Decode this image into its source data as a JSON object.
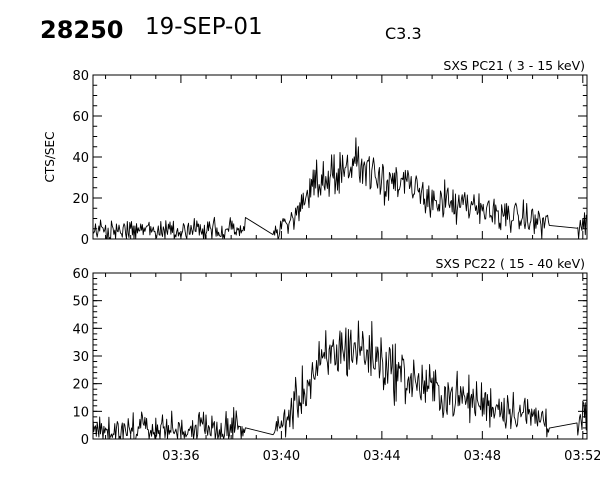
{
  "header": {
    "event_id": "28250",
    "date": "19-SEP-01",
    "flare_class": "C3.3"
  },
  "chart_data": [
    {
      "type": "line",
      "title": "SXS PC21  (  3 - 15 keV)",
      "ylabel": "CTS/SEC",
      "xlabel": "",
      "xlim": [
        "03:32:30",
        "03:52:10"
      ],
      "ylim": [
        0,
        80
      ],
      "yticks": [
        0,
        20,
        40,
        60,
        80
      ],
      "xticks": [
        "03:36",
        "03:40",
        "03:44",
        "03:48",
        "03:52"
      ],
      "grid": false,
      "series": [
        {
          "data_gaps": [
            [
              "03:38:35",
              "03:39:40"
            ],
            [
              "03:50:40",
              "03:51:45"
            ]
          ],
          "x": [
            "03:32:30",
            "03:33:00",
            "03:33:30",
            "03:34:00",
            "03:34:30",
            "03:35:00",
            "03:35:30",
            "03:36:00",
            "03:36:30",
            "03:37:00",
            "03:37:30",
            "03:38:00",
            "03:38:30",
            "03:39:40",
            "03:40:00",
            "03:40:20",
            "03:40:40",
            "03:41:00",
            "03:41:20",
            "03:41:40",
            "03:42:00",
            "03:42:20",
            "03:42:40",
            "03:43:00",
            "03:43:20",
            "03:43:40",
            "03:44:00",
            "03:44:30",
            "03:45:00",
            "03:45:30",
            "03:46:00",
            "03:46:30",
            "03:47:00",
            "03:47:30",
            "03:48:00",
            "03:48:30",
            "03:49:00",
            "03:49:30",
            "03:50:00",
            "03:50:40",
            "03:51:45",
            "03:52:10"
          ],
          "values": [
            4,
            4,
            3,
            5,
            4,
            4,
            5,
            4,
            4,
            4,
            5,
            6,
            4,
            3,
            5,
            8,
            14,
            19,
            25,
            29,
            32,
            34,
            36,
            37,
            36,
            34,
            31,
            28,
            25,
            22,
            20,
            18,
            16,
            15,
            14,
            13,
            12,
            10,
            9,
            8,
            4,
            9
          ]
        }
      ]
    },
    {
      "type": "line",
      "title": "SXS PC22  ( 15 - 40 keV)",
      "ylabel": "",
      "xlabel": "",
      "xlim": [
        "03:32:30",
        "03:52:10"
      ],
      "ylim": [
        0,
        60
      ],
      "yticks": [
        0,
        10,
        20,
        30,
        40,
        50,
        60
      ],
      "xticks": [
        "03:36",
        "03:40",
        "03:44",
        "03:48",
        "03:52"
      ],
      "grid": false,
      "series": [
        {
          "data_gaps": [
            [
              "03:38:35",
              "03:39:40"
            ],
            [
              "03:50:40",
              "03:51:45"
            ]
          ],
          "x": [
            "03:32:30",
            "03:33:00",
            "03:33:30",
            "03:34:00",
            "03:34:30",
            "03:35:00",
            "03:35:30",
            "03:36:00",
            "03:36:30",
            "03:37:00",
            "03:37:30",
            "03:38:00",
            "03:38:30",
            "03:39:40",
            "03:40:00",
            "03:40:20",
            "03:40:40",
            "03:41:00",
            "03:41:20",
            "03:41:40",
            "03:42:00",
            "03:42:20",
            "03:42:40",
            "03:43:00",
            "03:43:20",
            "03:43:40",
            "03:44:00",
            "03:44:30",
            "03:45:00",
            "03:45:30",
            "03:46:00",
            "03:46:30",
            "03:47:00",
            "03:47:30",
            "03:48:00",
            "03:48:30",
            "03:49:00",
            "03:49:30",
            "03:50:00",
            "03:50:40",
            "03:51:45",
            "03:52:10"
          ],
          "values": [
            4,
            3,
            4,
            3,
            4,
            3,
            4,
            3,
            4,
            4,
            3,
            4,
            4,
            2,
            5,
            9,
            14,
            19,
            24,
            27,
            30,
            32,
            33,
            33,
            32,
            30,
            28,
            25,
            22,
            20,
            18,
            16,
            15,
            14,
            13,
            12,
            11,
            10,
            8,
            7,
            5,
            10
          ]
        }
      ]
    }
  ]
}
